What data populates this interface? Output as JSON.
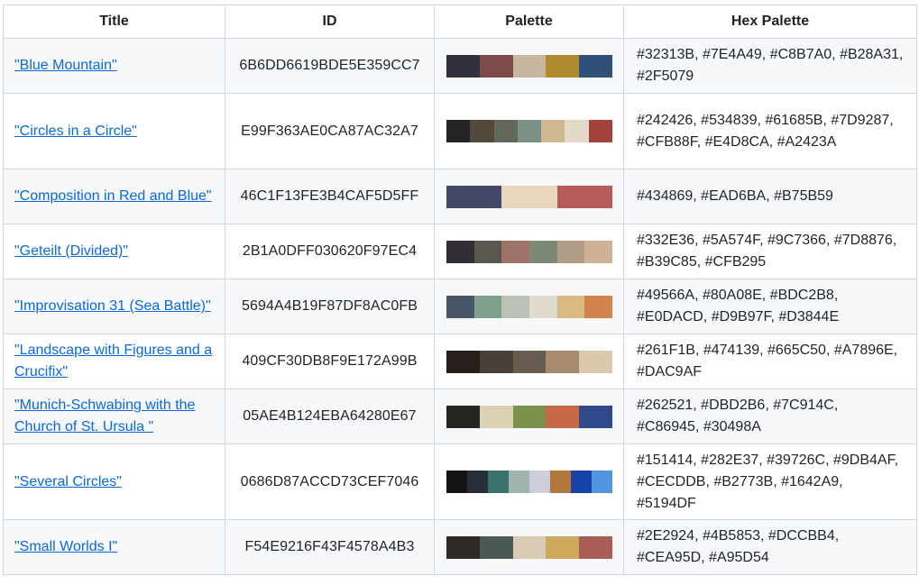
{
  "headers": [
    "Title",
    "ID",
    "Palette",
    "Hex Palette"
  ],
  "rows": [
    {
      "title": "\"Blue Mountain\"",
      "id": "6B6DD6619BDE5E359CC7",
      "colors": [
        "#32313B",
        "#7E4A49",
        "#C8B7A0",
        "#B28A31",
        "#2F5079"
      ],
      "hex": "#32313B, #7E4A49, #C8B7A0, #B28A31, #2F5079"
    },
    {
      "title": "\"Circles in a Circle\"",
      "id": "E99F363AE0CA87AC32A7",
      "colors": [
        "#242426",
        "#534839",
        "#61685B",
        "#7D9287",
        "#CFB88F",
        "#E4D8CA",
        "#A2423A"
      ],
      "hex": "#242426, #534839, #61685B, #7D9287, #CFB88F, #E4D8CA, #A2423A"
    },
    {
      "title": "\"Composition in Red and Blue\"",
      "id": "46C1F13FE3B4CAF5D5FF",
      "colors": [
        "#434869",
        "#EAD6BA",
        "#B75B59"
      ],
      "hex": "#434869, #EAD6BA, #B75B59"
    },
    {
      "title": "\"Geteilt (Divided)\"",
      "id": "2B1A0DFF030620F97EC4",
      "colors": [
        "#332E36",
        "#5A574F",
        "#9C7366",
        "#7D8876",
        "#B39C85",
        "#CFB295"
      ],
      "hex": "#332E36, #5A574F, #9C7366, #7D8876, #B39C85, #CFB295"
    },
    {
      "title": "\"Improvisation 31 (Sea Battle)\"",
      "id": "5694A4B19F87DF8AC0FB",
      "colors": [
        "#49566A",
        "#80A08E",
        "#BDC2B8",
        "#E0DACD",
        "#D9B97F",
        "#D3844E"
      ],
      "hex": "#49566A, #80A08E, #BDC2B8, #E0DACD, #D9B97F, #D3844E"
    },
    {
      "title": "\"Landscape with Figures and a Crucifix\"",
      "id": "409CF30DB8F9E172A99B",
      "colors": [
        "#261F1B",
        "#474139",
        "#665C50",
        "#A7896E",
        "#DAC9AF"
      ],
      "hex": "#261F1B, #474139, #665C50, #A7896E, #DAC9AF"
    },
    {
      "title": "\"Munich-Schwabing with the Church of St. Ursula \"",
      "id": "05AE4B124EBA64280E67",
      "colors": [
        "#262521",
        "#DBD2B6",
        "#7C914C",
        "#C86945",
        "#30498A"
      ],
      "hex": "#262521, #DBD2B6, #7C914C, #C86945, #30498A"
    },
    {
      "title": "\"Several Circles\"",
      "id": "0686D87ACCD73CEF7046",
      "colors": [
        "#151414",
        "#282E37",
        "#39726C",
        "#9DB4AF",
        "#CECDDB",
        "#B2773B",
        "#1642A9",
        "#5194DF"
      ],
      "hex": "#151414, #282E37, #39726C, #9DB4AF, #CECDDB, #B2773B, #1642A9, #5194DF"
    },
    {
      "title": "\"Small Worlds I\"",
      "id": "F54E9216F43F4578A4B3",
      "colors": [
        "#2E2924",
        "#4B5853",
        "#DCCBB4",
        "#CEA95D",
        "#A95D54"
      ],
      "hex": "#2E2924, #4B5853, #DCCBB4, #CEA95D, #A95D54"
    }
  ]
}
